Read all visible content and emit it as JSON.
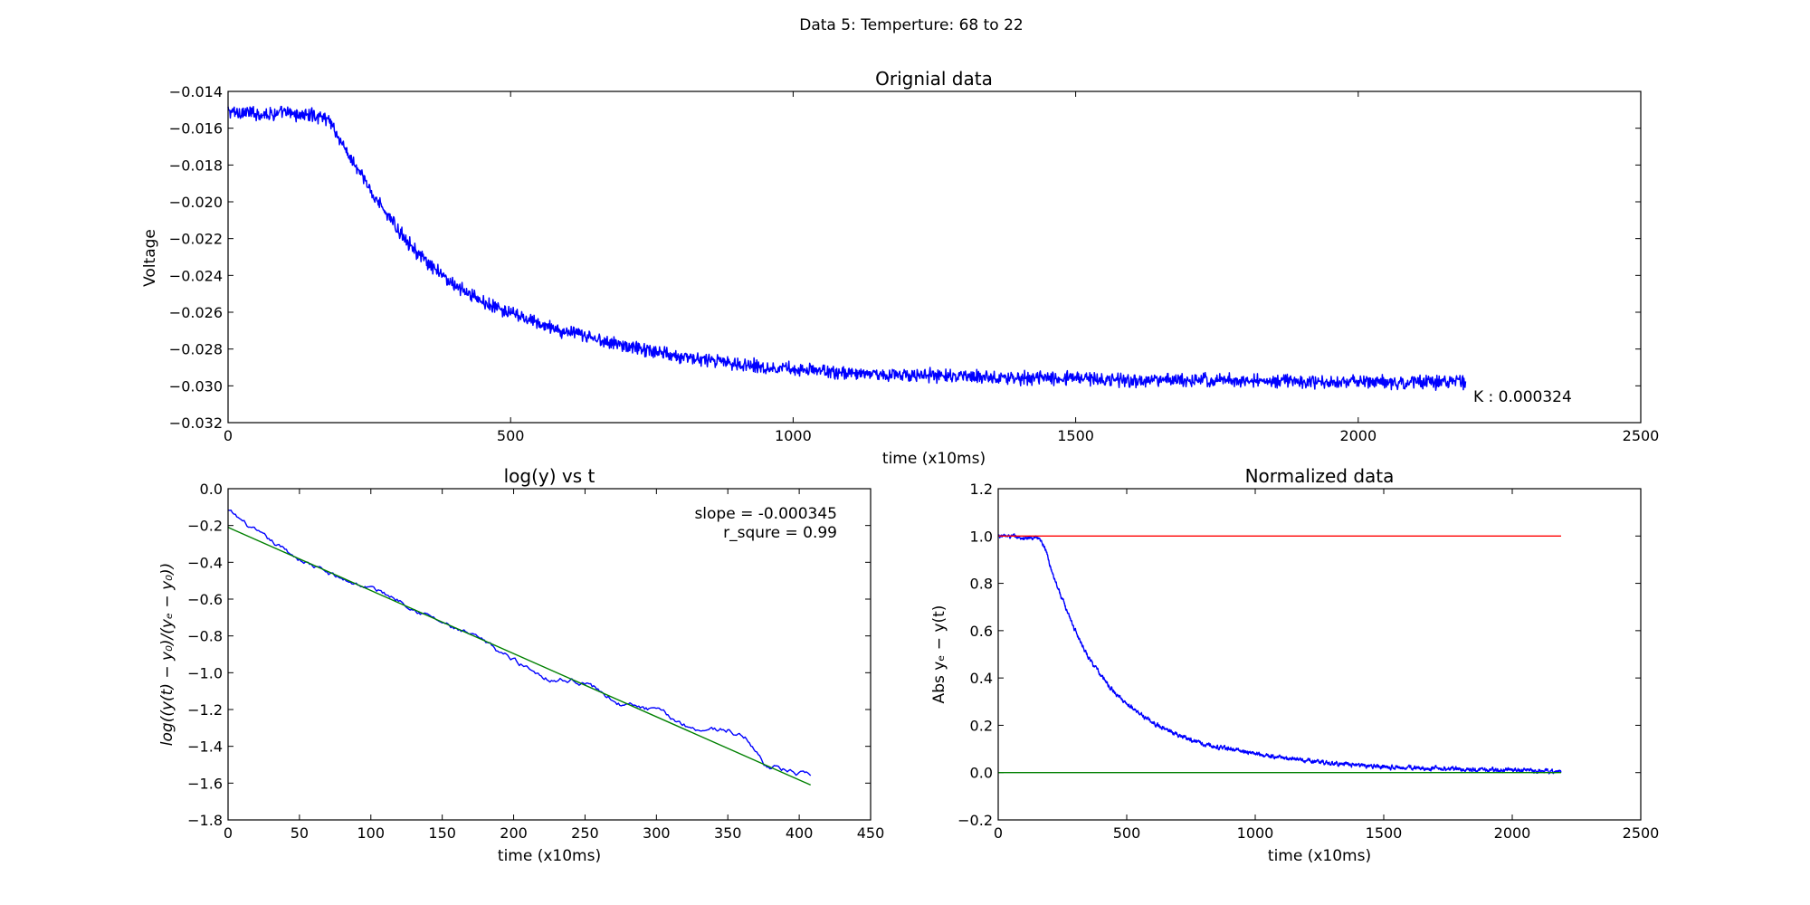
{
  "figure": {
    "suptitle": "Data 5: Temperture: 68 to 22"
  },
  "chart_data": [
    {
      "id": "top",
      "type": "line",
      "title": "Orignial data",
      "xlabel": "time (x10ms)",
      "ylabel": "Voltage",
      "xlim": [
        0,
        2500
      ],
      "ylim": [
        -0.032,
        -0.014
      ],
      "xticks": [
        0,
        500,
        1000,
        1500,
        2000,
        2500
      ],
      "yticks": [
        -0.032,
        -0.03,
        -0.028,
        -0.026,
        -0.024,
        -0.022,
        -0.02,
        -0.018,
        -0.016,
        -0.014
      ],
      "xtick_labels": [
        "0",
        "500",
        "1000",
        "1500",
        "2000",
        "2500"
      ],
      "ytick_labels": [
        "−0.032",
        "−0.030",
        "−0.028",
        "−0.026",
        "−0.024",
        "−0.022",
        "−0.020",
        "−0.018",
        "−0.016",
        "−0.014"
      ],
      "annotation": {
        "text": "K : 0.000324",
        "x": 2200,
        "y": -0.0305
      },
      "series": [
        {
          "color": "#0000ff",
          "x": [
            0,
            50,
            100,
            150,
            180,
            200,
            250,
            300,
            350,
            400,
            450,
            500,
            550,
            600,
            700,
            800,
            900,
            1000,
            1100,
            1200,
            1300,
            1400,
            1500,
            1600,
            1700,
            1800,
            1900,
            2000,
            2100,
            2190
          ],
          "y": [
            -0.0151,
            -0.0152,
            -0.0152,
            -0.0153,
            -0.0155,
            -0.0168,
            -0.0193,
            -0.0215,
            -0.0233,
            -0.0245,
            -0.0254,
            -0.0261,
            -0.0266,
            -0.0271,
            -0.0278,
            -0.0284,
            -0.0288,
            -0.0291,
            -0.0293,
            -0.0294,
            -0.0295,
            -0.0296,
            -0.0296,
            -0.0297,
            -0.0297,
            -0.0297,
            -0.0298,
            -0.0298,
            -0.0298,
            -0.0298
          ],
          "noise": 0.00045
        }
      ]
    },
    {
      "id": "bottom-left",
      "type": "line",
      "title": "log(y) vs t",
      "xlabel": "time (x10ms)",
      "ylabel": "log((y(t) − y₀)/(yₑ − y₀))",
      "xlim": [
        0,
        450
      ],
      "ylim": [
        -1.8,
        0.0
      ],
      "xticks": [
        0,
        50,
        100,
        150,
        200,
        250,
        300,
        350,
        400,
        450
      ],
      "yticks": [
        -1.8,
        -1.6,
        -1.4,
        -1.2,
        -1.0,
        -0.8,
        -0.6,
        -0.4,
        -0.2,
        0.0
      ],
      "xtick_labels": [
        "0",
        "50",
        "100",
        "150",
        "200",
        "250",
        "300",
        "350",
        "400",
        "450"
      ],
      "ytick_labels": [
        "−1.8",
        "−1.6",
        "−1.4",
        "−1.2",
        "−1.0",
        "−0.8",
        "−0.6",
        "−0.4",
        "−0.2",
        "0.0"
      ],
      "annotation": {
        "lines": [
          "slope = -0.000345",
          "r_squre = 0.99"
        ]
      },
      "series": [
        {
          "color": "#0000ff",
          "x": [
            0,
            25,
            50,
            75,
            100,
            125,
            150,
            175,
            200,
            225,
            250,
            275,
            300,
            325,
            350,
            365,
            375,
            395,
            405,
            408
          ],
          "y": [
            -0.12,
            -0.27,
            -0.38,
            -0.48,
            -0.54,
            -0.62,
            -0.73,
            -0.82,
            -0.93,
            -1.03,
            -1.05,
            -1.17,
            -1.21,
            -1.3,
            -1.31,
            -1.37,
            -1.49,
            -1.54,
            -1.56,
            -1.59
          ],
          "noise": 0.01
        },
        {
          "color": "#008000",
          "x": [
            0,
            408
          ],
          "y": [
            -0.21,
            -1.61
          ],
          "noise": 0
        }
      ]
    },
    {
      "id": "bottom-right",
      "type": "line",
      "title": "Normalized data",
      "xlabel": "time (x10ms)",
      "ylabel": "Abs yₑ − y(t)",
      "xlim": [
        0,
        2500
      ],
      "ylim": [
        -0.2,
        1.2
      ],
      "xticks": [
        0,
        500,
        1000,
        1500,
        2000,
        2500
      ],
      "yticks": [
        -0.2,
        0.0,
        0.2,
        0.4,
        0.6,
        0.8,
        1.0,
        1.2
      ],
      "xtick_labels": [
        "0",
        "500",
        "1000",
        "1500",
        "2000",
        "2500"
      ],
      "ytick_labels": [
        "−0.2",
        "0.0",
        "0.2",
        "0.4",
        "0.6",
        "0.8",
        "1.0",
        "1.2"
      ],
      "series": [
        {
          "color": "#0000ff",
          "x": [
            0,
            50,
            100,
            150,
            180,
            200,
            250,
            300,
            350,
            400,
            450,
            500,
            600,
            700,
            800,
            900,
            1000,
            1200,
            1400,
            1600,
            1800,
            2000,
            2190
          ],
          "y": [
            1.0,
            1.0,
            0.99,
            0.99,
            0.96,
            0.88,
            0.73,
            0.6,
            0.49,
            0.41,
            0.34,
            0.29,
            0.21,
            0.16,
            0.12,
            0.1,
            0.08,
            0.05,
            0.03,
            0.02,
            0.015,
            0.01,
            0.005
          ],
          "noise": 0.006
        },
        {
          "color": "#ff0000",
          "x": [
            0,
            2190
          ],
          "y": [
            1.0,
            1.0
          ],
          "noise": 0
        },
        {
          "color": "#008000",
          "x": [
            0,
            2190
          ],
          "y": [
            0.0,
            0.0
          ],
          "noise": 0
        }
      ]
    }
  ]
}
